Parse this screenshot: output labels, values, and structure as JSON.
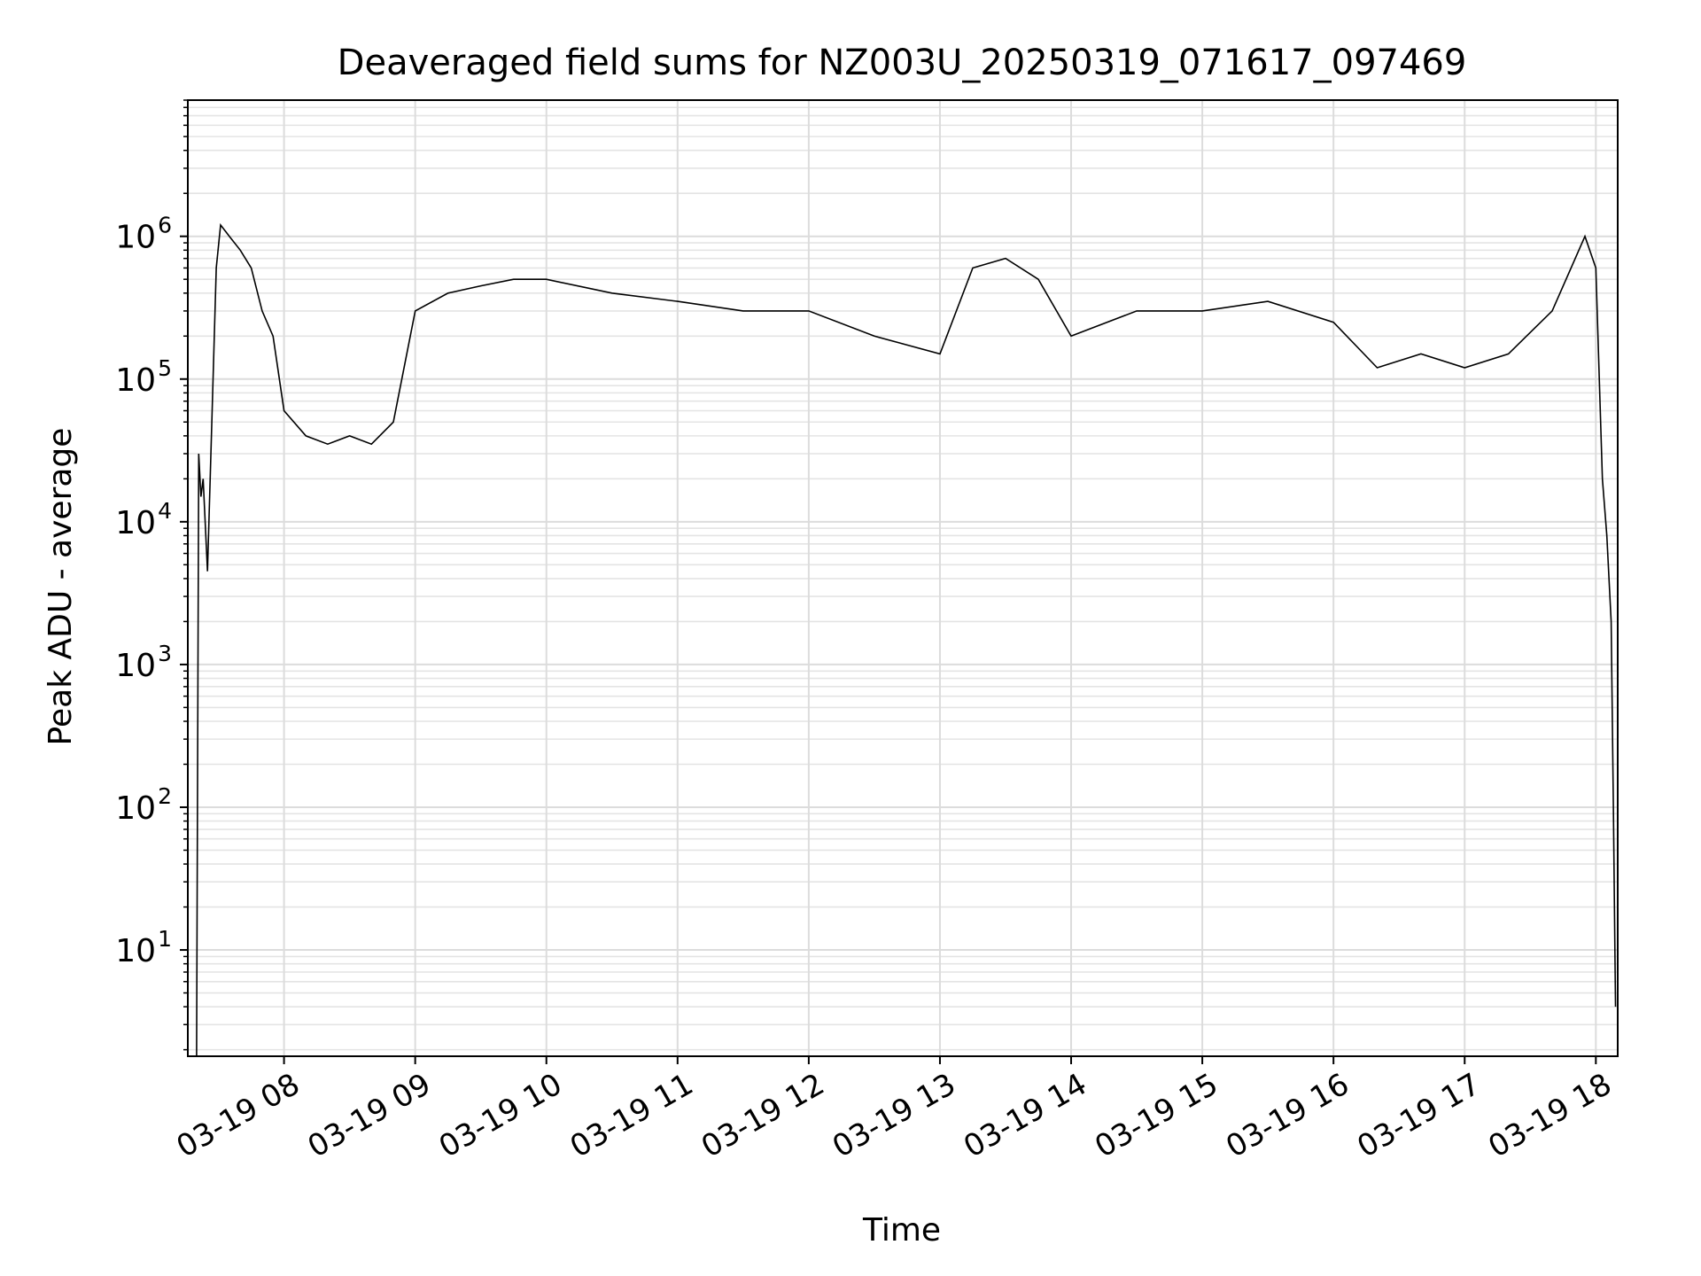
{
  "chart_data": {
    "type": "line",
    "title": "Deaveraged field sums for NZ003U_20250319_071617_097469",
    "xlabel": "Time",
    "ylabel": "Peak ADU - average",
    "yscale": "log",
    "ylim": [
      1.8,
      9000000
    ],
    "xlim": [
      "03-19 07:16",
      "03-19 18:10"
    ],
    "grid": "both",
    "series_color": "#000000",
    "x_ticks": [
      "03-19 08",
      "03-19 09",
      "03-19 10",
      "03-19 11",
      "03-19 12",
      "03-19 13",
      "03-19 14",
      "03-19 15",
      "03-19 16",
      "03-19 17",
      "03-19 18"
    ],
    "y_ticks": [
      {
        "value": 10,
        "base": "10",
        "exp": "1"
      },
      {
        "value": 100,
        "base": "10",
        "exp": "2"
      },
      {
        "value": 1000,
        "base": "10",
        "exp": "3"
      },
      {
        "value": 10000,
        "base": "10",
        "exp": "4"
      },
      {
        "value": 100000,
        "base": "10",
        "exp": "5"
      },
      {
        "value": 1000000,
        "base": "10",
        "exp": "6"
      }
    ],
    "series": [
      {
        "x": [
          "03-19 07:20",
          "03-19 07:21",
          "03-19 07:22",
          "03-19 07:23",
          "03-19 07:25",
          "03-19 07:27",
          "03-19 07:29",
          "03-19 07:31",
          "03-19 07:35",
          "03-19 07:40",
          "03-19 07:45",
          "03-19 07:50",
          "03-19 07:55",
          "03-19 08:00",
          "03-19 08:10",
          "03-19 08:20",
          "03-19 08:30",
          "03-19 08:40",
          "03-19 08:50",
          "03-19 09:00",
          "03-19 09:15",
          "03-19 09:30",
          "03-19 09:45",
          "03-19 10:00",
          "03-19 10:30",
          "03-19 11:00",
          "03-19 11:30",
          "03-19 12:00",
          "03-19 12:30",
          "03-19 13:00",
          "03-19 13:15",
          "03-19 13:30",
          "03-19 13:45",
          "03-19 14:00",
          "03-19 14:30",
          "03-19 15:00",
          "03-19 15:30",
          "03-19 16:00",
          "03-19 16:20",
          "03-19 16:40",
          "03-19 17:00",
          "03-19 17:20",
          "03-19 17:40",
          "03-19 17:55",
          "03-19 18:00",
          "03-19 18:03",
          "03-19 18:05",
          "03-19 18:07",
          "03-19 18:08",
          "03-19 18:09"
        ],
        "y": [
          1.8,
          30000,
          15000,
          20000,
          4500,
          50000,
          600000,
          1200000,
          1000000,
          800000,
          600000,
          300000,
          200000,
          60000,
          40000,
          35000,
          40000,
          35000,
          50000,
          300000,
          400000,
          450000,
          500000,
          500000,
          400000,
          350000,
          300000,
          300000,
          200000,
          150000,
          600000,
          700000,
          500000,
          200000,
          300000,
          300000,
          350000,
          250000,
          120000,
          150000,
          120000,
          150000,
          300000,
          1000000,
          600000,
          20000,
          8000,
          2000,
          100,
          4
        ]
      }
    ],
    "spikes_note": ""
  }
}
